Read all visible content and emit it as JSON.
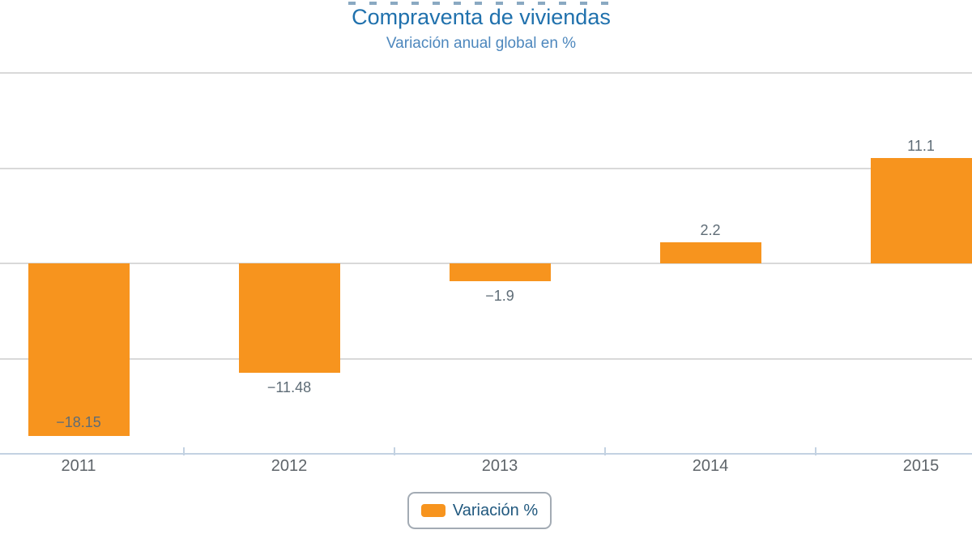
{
  "header": {
    "title": "Compraventa de viviendas",
    "subtitle": "Variación anual global en %"
  },
  "legend": {
    "label": "Variación %",
    "swatch_icon": "orange-square-swatch"
  },
  "colors": {
    "bar": "#f7941e",
    "title_text": "#2071ad",
    "subtitle_text": "#4d87bd",
    "gridline": "#d9d9d9",
    "axis_line": "#c3d2e2",
    "x_axis_label": "#5e6469",
    "data_label": "#5e6c76",
    "legend_text": "#20587e",
    "legend_border": "#a3abb4"
  },
  "chart_data": {
    "type": "bar",
    "title": "Compraventa de viviendas",
    "subtitle": "Variación anual global en %",
    "categories": [
      "2011",
      "2012",
      "2013",
      "2014",
      "2015"
    ],
    "series": [
      {
        "name": "Variación %",
        "values": [
          -18.15,
          -11.48,
          -1.9,
          2.2,
          11.1
        ],
        "labels": [
          "−18.15",
          "−11.48",
          "−1.9",
          "2.2",
          "11.1"
        ],
        "color": "#f7941e"
      }
    ],
    "xlabel": "",
    "ylabel": "",
    "ylim": [
      -20,
      20
    ],
    "grid_step": 10,
    "grid": true,
    "yaxis_tick_labels_visible": false,
    "data_labels_visible": true,
    "legend_position": "bottom-center",
    "orientation": "vertical"
  }
}
